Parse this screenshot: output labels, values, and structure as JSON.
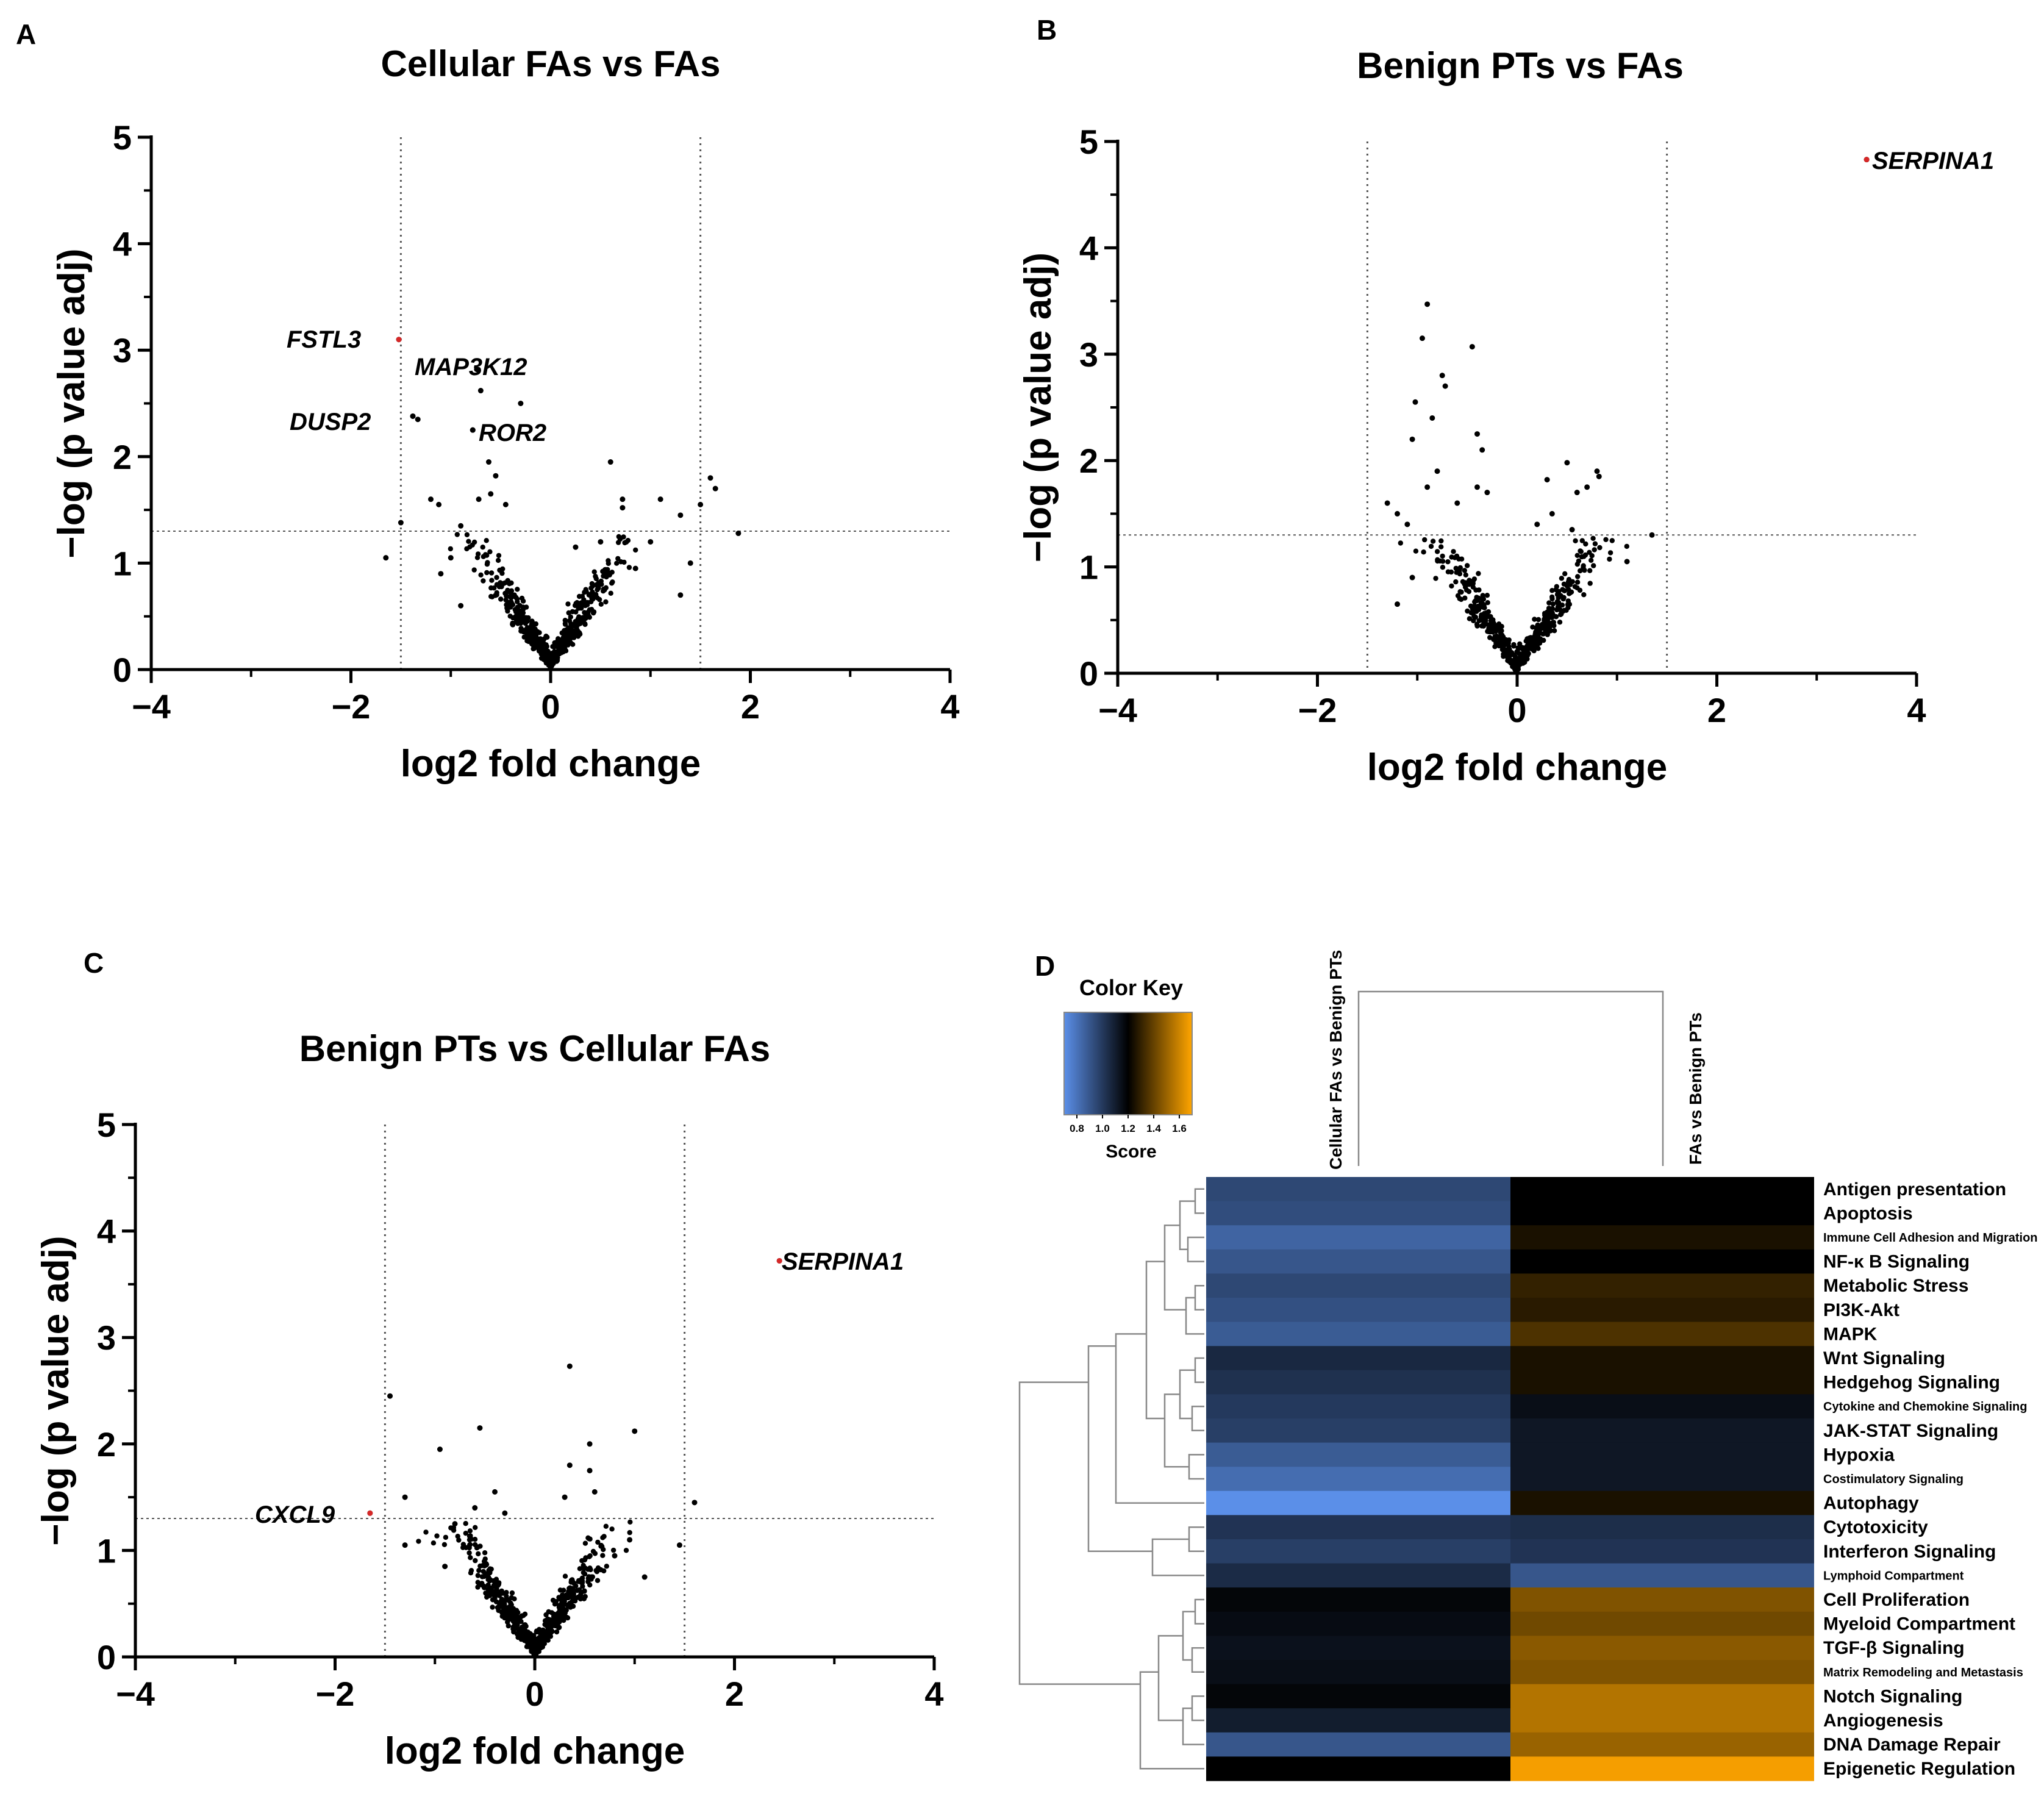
{
  "chart_data": [
    {
      "panel": "A",
      "type": "scatter",
      "title": "Cellular FAs vs FAs",
      "xlabel": "log2 fold change",
      "ylabel": "−log (p value adj)",
      "xlim": [
        -4,
        4
      ],
      "ylim": [
        0,
        5
      ],
      "xticks": [
        "−4",
        "−2",
        "0",
        "2",
        "4"
      ],
      "yticks": [
        "0",
        "1",
        "2",
        "3",
        "4",
        "5"
      ],
      "thresholds": {
        "x": [
          -1.5,
          1.5
        ],
        "y": 1.3
      },
      "points": [
        [
          -1.52,
          3.1
        ],
        [
          -1.38,
          2.38
        ],
        [
          -1.33,
          2.35
        ],
        [
          -0.62,
          1.95
        ],
        [
          -1.65,
          1.05
        ],
        [
          -1.5,
          1.38
        ],
        [
          -1.2,
          1.6
        ],
        [
          -1.12,
          1.55
        ],
        [
          -0.9,
          1.35
        ],
        [
          -0.72,
          1.6
        ],
        [
          -0.6,
          1.65
        ],
        [
          -0.45,
          1.55
        ],
        [
          -0.55,
          1.82
        ],
        [
          -0.3,
          2.5
        ],
        [
          -0.7,
          2.62
        ],
        [
          -0.78,
          2.25
        ],
        [
          0.6,
          1.95
        ],
        [
          0.72,
          1.6
        ],
        [
          0.72,
          1.52
        ],
        [
          1.1,
          1.6
        ],
        [
          1.3,
          1.45
        ],
        [
          1.5,
          1.55
        ],
        [
          1.6,
          1.8
        ],
        [
          1.65,
          1.7
        ],
        [
          1.88,
          1.28
        ],
        [
          1.4,
          1.0
        ],
        [
          1.3,
          0.7
        ],
        [
          1.0,
          1.2
        ],
        [
          -1.0,
          1.05
        ],
        [
          -1.1,
          0.9
        ],
        [
          -0.9,
          0.6
        ],
        [
          0.5,
          1.2
        ],
        [
          0.25,
          1.15
        ],
        [
          0.85,
          0.95
        ]
      ],
      "labels": [
        {
          "text": "FSTL3",
          "x": -1.52,
          "y": 3.1,
          "color": "#d62828"
        },
        {
          "text": "MAP3K12",
          "x": -0.74,
          "y": 2.82,
          "color": "#000000"
        },
        {
          "text": "DUSP2",
          "x": -1.38,
          "y": 2.38,
          "color": "#000000"
        },
        {
          "text": "ROR2",
          "x": -0.78,
          "y": 2.25,
          "color": "#000000"
        }
      ]
    },
    {
      "panel": "B",
      "type": "scatter",
      "title": "Benign PTs vs FAs",
      "xlabel": "log2 fold change",
      "ylabel": "−log (p value adj)",
      "xlim": [
        -4,
        4
      ],
      "ylim": [
        0,
        5
      ],
      "xticks": [
        "−4",
        "−2",
        "0",
        "2",
        "4"
      ],
      "yticks": [
        "0",
        "1",
        "2",
        "3",
        "4",
        "5"
      ],
      "thresholds": {
        "x": [
          -1.5,
          1.5
        ],
        "y": 1.3
      },
      "points": [
        [
          -0.9,
          3.47
        ],
        [
          -0.95,
          3.15
        ],
        [
          -0.45,
          3.07
        ],
        [
          -0.75,
          2.8
        ],
        [
          -0.72,
          2.7
        ],
        [
          -1.02,
          2.55
        ],
        [
          -0.85,
          2.4
        ],
        [
          -1.05,
          2.2
        ],
        [
          -0.4,
          2.25
        ],
        [
          -0.35,
          2.1
        ],
        [
          -0.8,
          1.9
        ],
        [
          -0.9,
          1.75
        ],
        [
          -0.4,
          1.75
        ],
        [
          -0.3,
          1.7
        ],
        [
          -1.3,
          1.6
        ],
        [
          -1.2,
          1.5
        ],
        [
          -1.1,
          1.4
        ],
        [
          -0.6,
          1.6
        ],
        [
          1.35,
          1.3
        ],
        [
          0.5,
          1.98
        ],
        [
          0.8,
          1.9
        ],
        [
          0.82,
          1.85
        ],
        [
          0.6,
          1.7
        ],
        [
          0.7,
          1.75
        ],
        [
          0.3,
          1.82
        ],
        [
          0.2,
          1.4
        ],
        [
          0.35,
          1.5
        ],
        [
          0.55,
          1.35
        ],
        [
          1.1,
          1.05
        ],
        [
          -1.2,
          0.65
        ],
        [
          -1.05,
          0.9
        ],
        [
          3.5,
          4.83
        ]
      ],
      "labels": [
        {
          "text": "SERPINA1",
          "x": 3.5,
          "y": 4.83,
          "color": "#d62828"
        }
      ]
    },
    {
      "panel": "C",
      "type": "scatter",
      "title": "Benign PTs vs Cellular FAs",
      "xlabel": "log2 fold change",
      "ylabel": "−log (p value adj)",
      "xlim": [
        -4,
        4
      ],
      "ylim": [
        0,
        5
      ],
      "xticks": [
        "−4",
        "−2",
        "0",
        "2",
        "4"
      ],
      "yticks": [
        "0",
        "1",
        "2",
        "3",
        "4",
        "5"
      ],
      "thresholds": {
        "x": [
          -1.5,
          1.5
        ],
        "y": 1.3
      },
      "points": [
        [
          -1.45,
          2.45
        ],
        [
          -1.3,
          1.5
        ],
        [
          -0.95,
          1.95
        ],
        [
          -0.55,
          2.15
        ],
        [
          0.35,
          2.73
        ],
        [
          1.0,
          2.12
        ],
        [
          0.55,
          2.0
        ],
        [
          0.35,
          1.8
        ],
        [
          0.55,
          1.75
        ],
        [
          0.6,
          1.55
        ],
        [
          0.3,
          1.5
        ],
        [
          -0.6,
          1.4
        ],
        [
          -0.3,
          1.35
        ],
        [
          -0.8,
          1.25
        ],
        [
          1.6,
          1.45
        ],
        [
          1.45,
          1.05
        ],
        [
          0.95,
          1.1
        ],
        [
          1.1,
          0.75
        ],
        [
          0.8,
          0.95
        ],
        [
          -1.3,
          1.05
        ],
        [
          -0.9,
          0.85
        ],
        [
          -0.4,
          1.55
        ],
        [
          2.45,
          3.72
        ],
        [
          -1.65,
          1.35
        ]
      ],
      "labels": [
        {
          "text": "SERPINA1",
          "x": 2.45,
          "y": 3.72,
          "color": "#d62828"
        },
        {
          "text": "CXCL9",
          "x": -1.65,
          "y": 1.35,
          "color": "#d62828"
        }
      ]
    },
    {
      "panel": "D",
      "type": "heatmap",
      "columns": [
        "Cellular FAs vs Benign PTs",
        "FAs vs Benign PTs"
      ],
      "rows": [
        "Antigen presentation",
        "Apoptosis",
        "Immune Cell Adhesion and Migration",
        "NF-κ B Signaling",
        "Metabolic Stress",
        "PI3K-Akt",
        "MAPK",
        "Wnt Signaling",
        "Hedgehog Signaling",
        "Cytokine and Chemokine Signaling",
        "JAK-STAT Signaling",
        "Hypoxia",
        "Costimulatory Signaling",
        "Autophagy",
        "Cytotoxicity",
        "Interferon Signaling",
        "Lymphoid Compartment",
        "Cell Proliferation",
        "Myeloid Compartment",
        "TGF-β Signaling",
        "Matrix Remodeling and Metastasis",
        "Notch Signaling",
        "Angiogenesis",
        "DNA Damage Repair",
        "Epigenetic Regulation"
      ],
      "values": [
        [
          0.95,
          1.2
        ],
        [
          0.93,
          1.2
        ],
        [
          0.85,
          1.25
        ],
        [
          0.9,
          1.2
        ],
        [
          0.95,
          1.3
        ],
        [
          0.92,
          1.28
        ],
        [
          0.88,
          1.35
        ],
        [
          1.06,
          1.25
        ],
        [
          1.03,
          1.25
        ],
        [
          1.0,
          1.15
        ],
        [
          0.98,
          1.12
        ],
        [
          0.88,
          1.12
        ],
        [
          0.82,
          1.12
        ],
        [
          0.62,
          1.25
        ],
        [
          1.02,
          1.04
        ],
        [
          0.98,
          1.02
        ],
        [
          1.05,
          0.9
        ],
        [
          1.18,
          1.45
        ],
        [
          1.16,
          1.42
        ],
        [
          1.14,
          1.47
        ],
        [
          1.15,
          1.45
        ],
        [
          1.18,
          1.55
        ],
        [
          1.1,
          1.55
        ],
        [
          0.9,
          1.5
        ],
        [
          1.2,
          1.68
        ]
      ],
      "color_key": {
        "title": "Color Key",
        "label": "Score",
        "ticks": [
          "0.8",
          "1.0",
          "1.2",
          "1.4",
          "1.6"
        ],
        "range": [
          0.7,
          1.7
        ],
        "colors": [
          "#5b8fe8",
          "#000000",
          "#ffa500"
        ]
      }
    }
  ]
}
